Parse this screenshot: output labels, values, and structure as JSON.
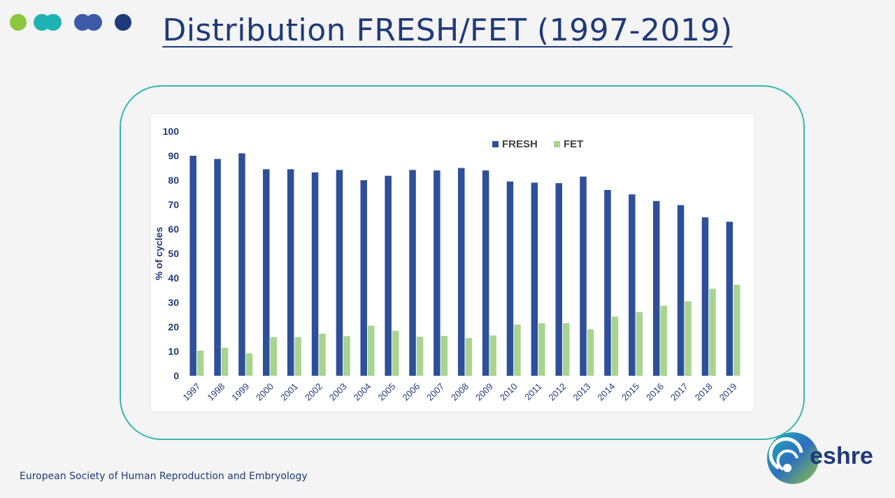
{
  "slide": {
    "title": "Distribution FRESH/FET (1997-2019)",
    "footer": "European Society of Human Reproduction and Embryology",
    "logo_text": "eshre",
    "dots_colors": [
      "#8dc63f",
      "#1fb2b2",
      "#3c5aa8",
      "#1f3a7a"
    ]
  },
  "chart_data": {
    "type": "bar",
    "title": "",
    "xlabel": "",
    "ylabel": "% of cycles",
    "ylim": [
      0,
      100
    ],
    "yticks": [
      0,
      10,
      20,
      30,
      40,
      50,
      60,
      70,
      80,
      90,
      100
    ],
    "legend_position": "top-right",
    "grid": false,
    "categories": [
      "1997",
      "1998",
      "1999",
      "2000",
      "2001",
      "2002",
      "2003",
      "2004",
      "2005",
      "2006",
      "2007",
      "2008",
      "2009",
      "2010",
      "2011",
      "2012",
      "2013",
      "2014",
      "2015",
      "2016",
      "2017",
      "2018",
      "2019"
    ],
    "series": [
      {
        "name": "FRESH",
        "color": "#2e4f99",
        "values": [
          90,
          88.7,
          91,
          84.5,
          84.5,
          83.2,
          84.2,
          80,
          81.8,
          84.2,
          84,
          85,
          84,
          79.5,
          79,
          78.8,
          81.5,
          76,
          74.2,
          71.5,
          69.8,
          64.8,
          63
        ]
      },
      {
        "name": "FET",
        "color": "#a8d48f",
        "values": [
          10.3,
          11.5,
          9.2,
          15.8,
          15.8,
          17.2,
          16.2,
          20.5,
          18.4,
          16,
          16.3,
          15.4,
          16.5,
          21,
          21.5,
          21.5,
          19,
          24.2,
          26,
          28.7,
          30.5,
          35.6,
          37.2
        ]
      }
    ]
  }
}
